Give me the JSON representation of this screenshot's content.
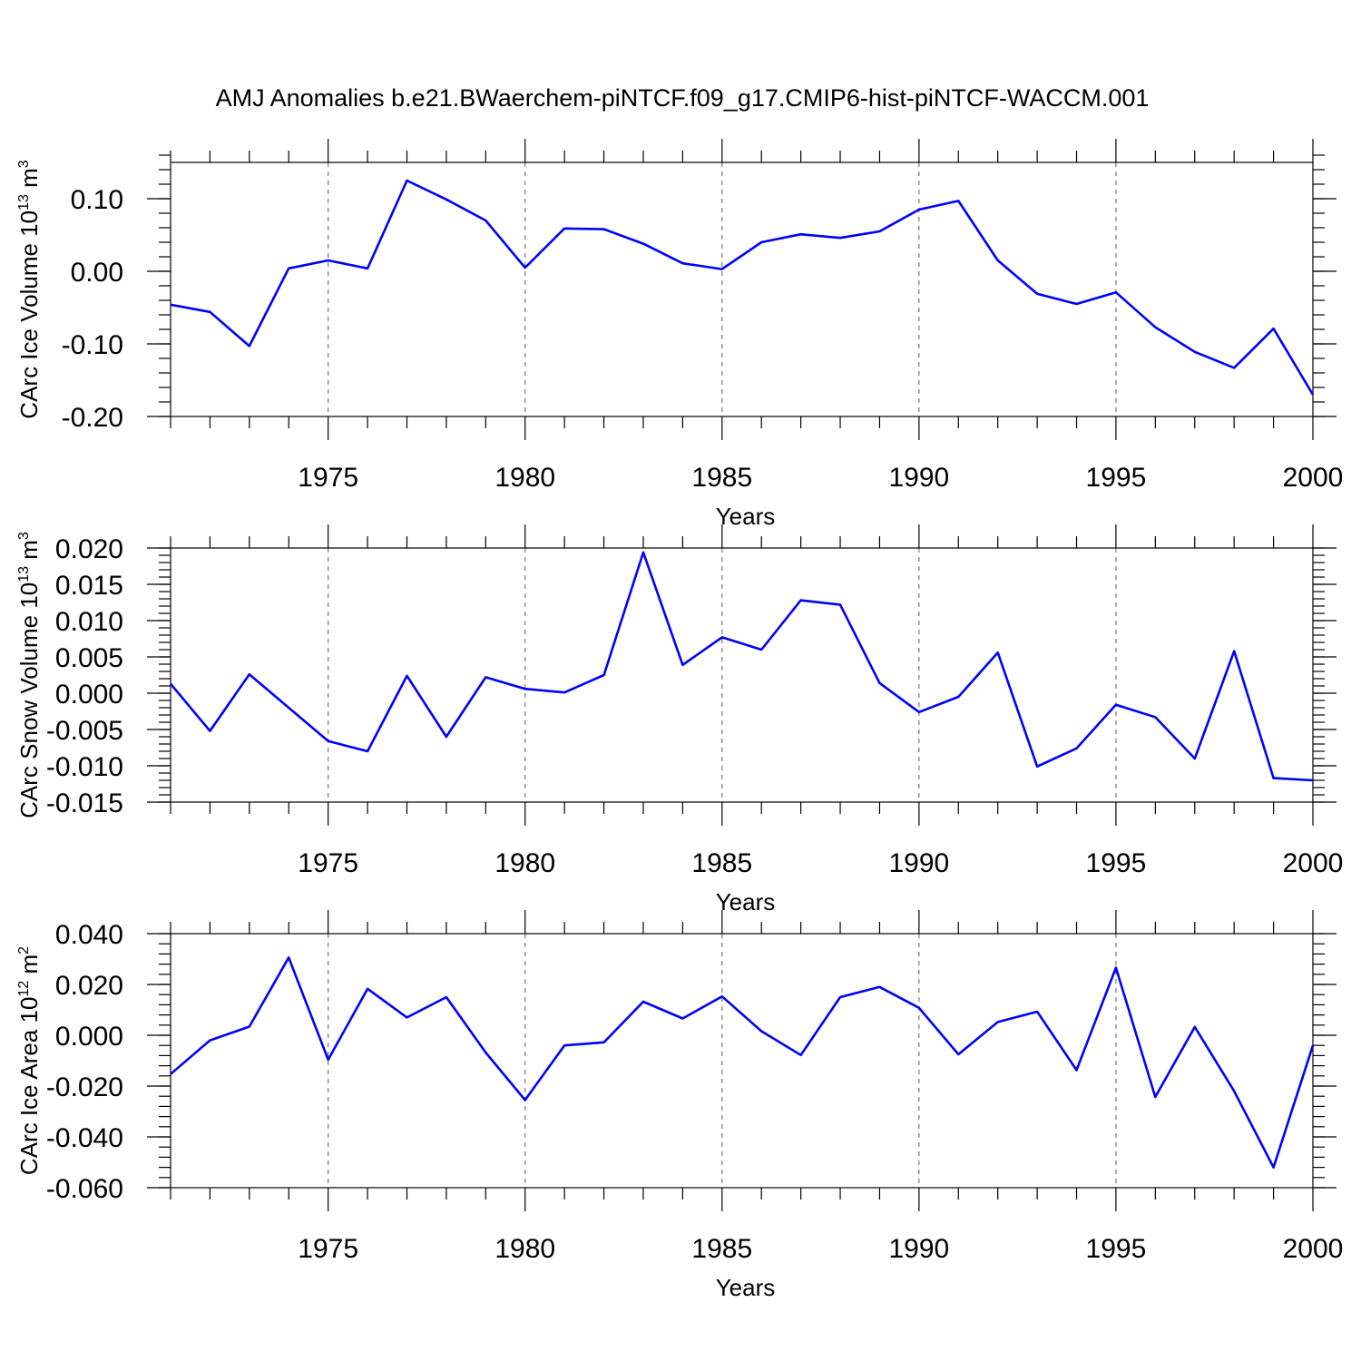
{
  "figure_title": "AMJ Anomalies b.e21.BWaerchem-piNTCF.f09_g17.CMIP6-hist-piNTCF-WACCM.001",
  "colors": {
    "line": "#0000ff",
    "grid": "#777777",
    "axes": "#000000"
  },
  "chart_data": [
    {
      "type": "line",
      "title": "",
      "xlabel": "Years",
      "ylabel_main": "CArc Ice Volume 10",
      "ylabel_exp": "13",
      "ylabel_unit": " m",
      "ylabel_unit_exp": "3",
      "xlim": [
        1971,
        2000
      ],
      "ylim": [
        -0.2,
        0.15
      ],
      "x_major_ticks": [
        1975,
        1980,
        1985,
        1990,
        1995,
        2000
      ],
      "x_tick_labels": [
        "1975",
        "1980",
        "1985",
        "1990",
        "1995",
        "2000"
      ],
      "y_major_ticks": [
        -0.2,
        -0.1,
        0.0,
        0.1
      ],
      "y_tick_labels": [
        "-0.20",
        "-0.10",
        "0.00",
        "0.10"
      ],
      "y_minor_step": 0.02,
      "grid": "vertical dashed at major x ticks",
      "x": [
        1971,
        1972,
        1973,
        1974,
        1975,
        1976,
        1977,
        1978,
        1979,
        1980,
        1981,
        1982,
        1983,
        1984,
        1985,
        1986,
        1987,
        1988,
        1989,
        1990,
        1991,
        1992,
        1993,
        1994,
        1995,
        1996,
        1997,
        1998,
        1999,
        2000
      ],
      "values": [
        -0.046,
        -0.056,
        -0.103,
        0.004,
        0.015,
        0.004,
        0.125,
        0.099,
        0.07,
        0.005,
        0.059,
        0.058,
        0.038,
        0.011,
        0.003,
        0.04,
        0.051,
        0.046,
        0.055,
        0.085,
        0.097,
        0.015,
        -0.031,
        -0.045,
        -0.029,
        -0.077,
        -0.111,
        -0.133,
        -0.079,
        -0.17
      ]
    },
    {
      "type": "line",
      "title": "",
      "xlabel": "Years",
      "ylabel_main": "CArc Snow Volume 10",
      "ylabel_exp": "13",
      "ylabel_unit": " m",
      "ylabel_unit_exp": "3",
      "xlim": [
        1971,
        2000
      ],
      "ylim": [
        -0.015,
        0.02
      ],
      "x_major_ticks": [
        1975,
        1980,
        1985,
        1990,
        1995,
        2000
      ],
      "x_tick_labels": [
        "1975",
        "1980",
        "1985",
        "1990",
        "1995",
        "2000"
      ],
      "y_major_ticks": [
        -0.015,
        -0.01,
        -0.005,
        0.0,
        0.005,
        0.01,
        0.015,
        0.02
      ],
      "y_tick_labels": [
        "-0.015",
        "-0.010",
        "-0.005",
        "0.000",
        "0.005",
        "0.010",
        "0.015",
        "0.020"
      ],
      "y_minor_step": 0.001,
      "grid": "vertical dashed at major x ticks",
      "x": [
        1971,
        1972,
        1973,
        1974,
        1975,
        1976,
        1977,
        1978,
        1979,
        1980,
        1981,
        1982,
        1983,
        1984,
        1985,
        1986,
        1987,
        1988,
        1989,
        1990,
        1991,
        1992,
        1993,
        1994,
        1995,
        1996,
        1997,
        1998,
        1999,
        2000
      ],
      "values": [
        0.0013,
        -0.0052,
        0.0026,
        -0.002,
        -0.0066,
        -0.008,
        0.0024,
        -0.006,
        0.0022,
        0.0006,
        0.0001,
        0.0025,
        0.0194,
        0.0039,
        0.0077,
        0.006,
        0.0128,
        0.0122,
        0.0014,
        -0.0026,
        -0.0005,
        0.0056,
        -0.0101,
        -0.0076,
        -0.0016,
        -0.0033,
        -0.009,
        0.0058,
        -0.0117,
        -0.012
      ]
    },
    {
      "type": "line",
      "title": "",
      "xlabel": "Years",
      "ylabel_main": "CArc Ice Area 10",
      "ylabel_exp": "12",
      "ylabel_unit": " m",
      "ylabel_unit_exp": "2",
      "xlim": [
        1971,
        2000
      ],
      "ylim": [
        -0.06,
        0.04
      ],
      "x_major_ticks": [
        1975,
        1980,
        1985,
        1990,
        1995,
        2000
      ],
      "x_tick_labels": [
        "1975",
        "1980",
        "1985",
        "1990",
        "1995",
        "2000"
      ],
      "y_major_ticks": [
        -0.06,
        -0.04,
        -0.02,
        0.0,
        0.02,
        0.04
      ],
      "y_tick_labels": [
        "-0.060",
        "-0.040",
        "-0.020",
        "0.000",
        "0.020",
        "0.040"
      ],
      "y_minor_step": 0.004,
      "grid": "vertical dashed at major x ticks",
      "x": [
        1971,
        1972,
        1973,
        1974,
        1975,
        1976,
        1977,
        1978,
        1979,
        1980,
        1981,
        1982,
        1983,
        1984,
        1985,
        1986,
        1987,
        1988,
        1989,
        1990,
        1991,
        1992,
        1993,
        1994,
        1995,
        1996,
        1997,
        1998,
        1999,
        2000
      ],
      "values": [
        -0.0153,
        -0.002,
        0.0034,
        0.0306,
        -0.0096,
        0.0183,
        0.007,
        0.015,
        -0.0068,
        -0.0255,
        -0.004,
        -0.0028,
        0.0132,
        0.0066,
        0.0153,
        0.0016,
        -0.0078,
        0.015,
        0.019,
        0.0108,
        -0.0075,
        0.0052,
        0.0093,
        -0.0137,
        0.0266,
        -0.0243,
        0.0033,
        -0.022,
        -0.052,
        -0.004
      ]
    }
  ]
}
